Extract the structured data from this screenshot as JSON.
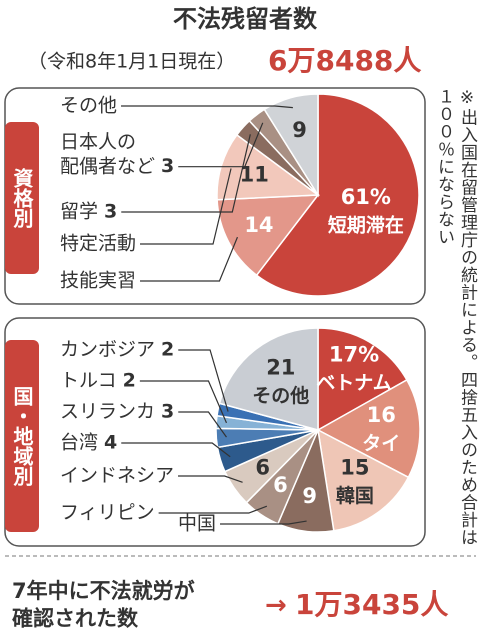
{
  "title": "不法残留者数",
  "subtitle": "（令和8年1月1日現在）",
  "total": "6万8488人",
  "note": "※出入国在留管理庁の統計による。四捨五入のため合計は１００％にならない",
  "footer": {
    "label": "7年中に不法就労が\n確認された数",
    "value": "1万3435人"
  },
  "chart_data": [
    {
      "type": "pie",
      "title": "資格別",
      "categories": [
        "短期滞在",
        "技能実習",
        "特定活動",
        "留学",
        "日本人の\n配偶者など",
        "その他"
      ],
      "values": [
        61,
        14,
        11,
        3,
        3,
        9
      ],
      "value_labels": [
        "61%",
        "14",
        "11",
        "3",
        "3",
        "9"
      ],
      "colors": [
        "#c9443b",
        "#e3978a",
        "#f2c8bb",
        "#8a6c5f",
        "#a99084",
        "#d0d3d7"
      ]
    },
    {
      "type": "pie",
      "title": "国・地域別",
      "categories": [
        "ベトナム",
        "タイ",
        "韓国",
        "中国",
        "フィリピン",
        "インドネシア",
        "台湾",
        "スリランカ",
        "トルコ",
        "カンボジア",
        "その他"
      ],
      "values": [
        17,
        16,
        15,
        9,
        6,
        6,
        4,
        3,
        2,
        2,
        21
      ],
      "value_labels": [
        "17%",
        "16",
        "15",
        "9",
        "6",
        "6",
        "4",
        "3",
        "2",
        "2",
        "21"
      ],
      "colors": [
        "#c9443b",
        "#e0907c",
        "#efc6b6",
        "#8a6c5f",
        "#a99084",
        "#d9cabf",
        "#2d5a8c",
        "#4c7db4",
        "#86b2d6",
        "#3a71b4",
        "#c9cdd3"
      ]
    }
  ]
}
